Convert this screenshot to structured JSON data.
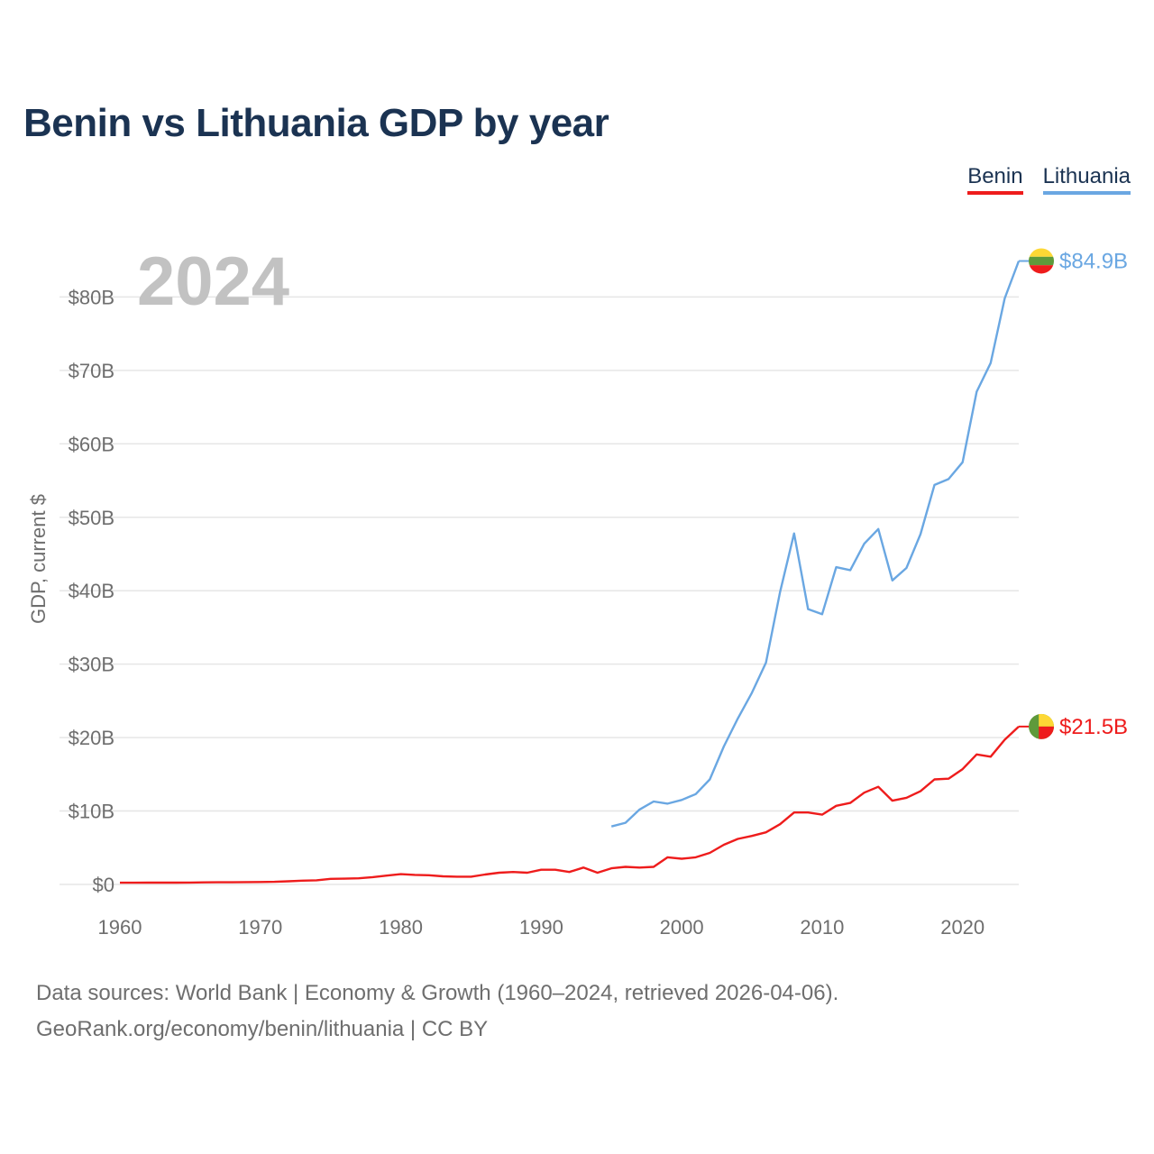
{
  "title": "Benin vs Lithuania GDP by year",
  "legend": {
    "benin": "Benin",
    "lithuania": "Lithuania"
  },
  "year_label": "2024",
  "end_labels": {
    "benin": "$21.5B",
    "lithuania": "$84.9B"
  },
  "footer": {
    "line1": "Data sources: World Bank | Economy & Growth (1960–2024, retrieved 2026-04-06).",
    "line2": "GeoRank.org/economy/benin/lithuania | CC BY"
  },
  "colors": {
    "benin": "#ee1c1c",
    "lithuania": "#6aa7e2",
    "grid": "#e6e6e6",
    "axis_text": "#6e6e6e",
    "year": "#c2c2c2"
  },
  "chart_data": {
    "type": "line",
    "ylabel": "GDP, current $",
    "xlabel": "",
    "xlim": [
      1960,
      2024
    ],
    "ylim": [
      0,
      85
    ],
    "unit": "billions USD",
    "x_ticks": [
      1960,
      1970,
      1980,
      1990,
      2000,
      2010,
      2020
    ],
    "x_tick_labels": [
      "1960",
      "1970",
      "1980",
      "1990",
      "2000",
      "2010",
      "2020"
    ],
    "y_ticks": [
      0,
      10,
      20,
      30,
      40,
      50,
      60,
      70,
      80
    ],
    "y_tick_labels": [
      "$0",
      "$10B",
      "$20B",
      "$30B",
      "$40B",
      "$50B",
      "$60B",
      "$70B",
      "$80B"
    ],
    "series": [
      {
        "name": "Benin",
        "start_year": 1960,
        "values": [
          0.23,
          0.23,
          0.24,
          0.24,
          0.25,
          0.26,
          0.28,
          0.29,
          0.3,
          0.32,
          0.33,
          0.36,
          0.43,
          0.52,
          0.56,
          0.76,
          0.78,
          0.83,
          1.0,
          1.2,
          1.4,
          1.3,
          1.25,
          1.1,
          1.05,
          1.05,
          1.35,
          1.6,
          1.7,
          1.6,
          2.0,
          2.0,
          1.7,
          2.3,
          1.6,
          2.2,
          2.4,
          2.3,
          2.4,
          3.7,
          3.5,
          3.7,
          4.3,
          5.4,
          6.2,
          6.6,
          7.1,
          8.2,
          9.8,
          9.8,
          9.5,
          10.7,
          11.1,
          12.5,
          13.3,
          11.4,
          11.8,
          12.7,
          14.3,
          14.4,
          15.7,
          17.7,
          17.4,
          19.7,
          21.5
        ]
      },
      {
        "name": "Lithuania",
        "start_year": 1995,
        "values": [
          7.9,
          8.4,
          10.2,
          11.3,
          11.0,
          11.5,
          12.3,
          14.3,
          18.8,
          22.6,
          26.1,
          30.2,
          39.8,
          47.8,
          37.5,
          36.8,
          43.2,
          42.8,
          46.4,
          48.4,
          41.4,
          43.1,
          47.7,
          54.4,
          55.2,
          57.5,
          67.1,
          71.0,
          79.8,
          84.9
        ]
      }
    ]
  }
}
